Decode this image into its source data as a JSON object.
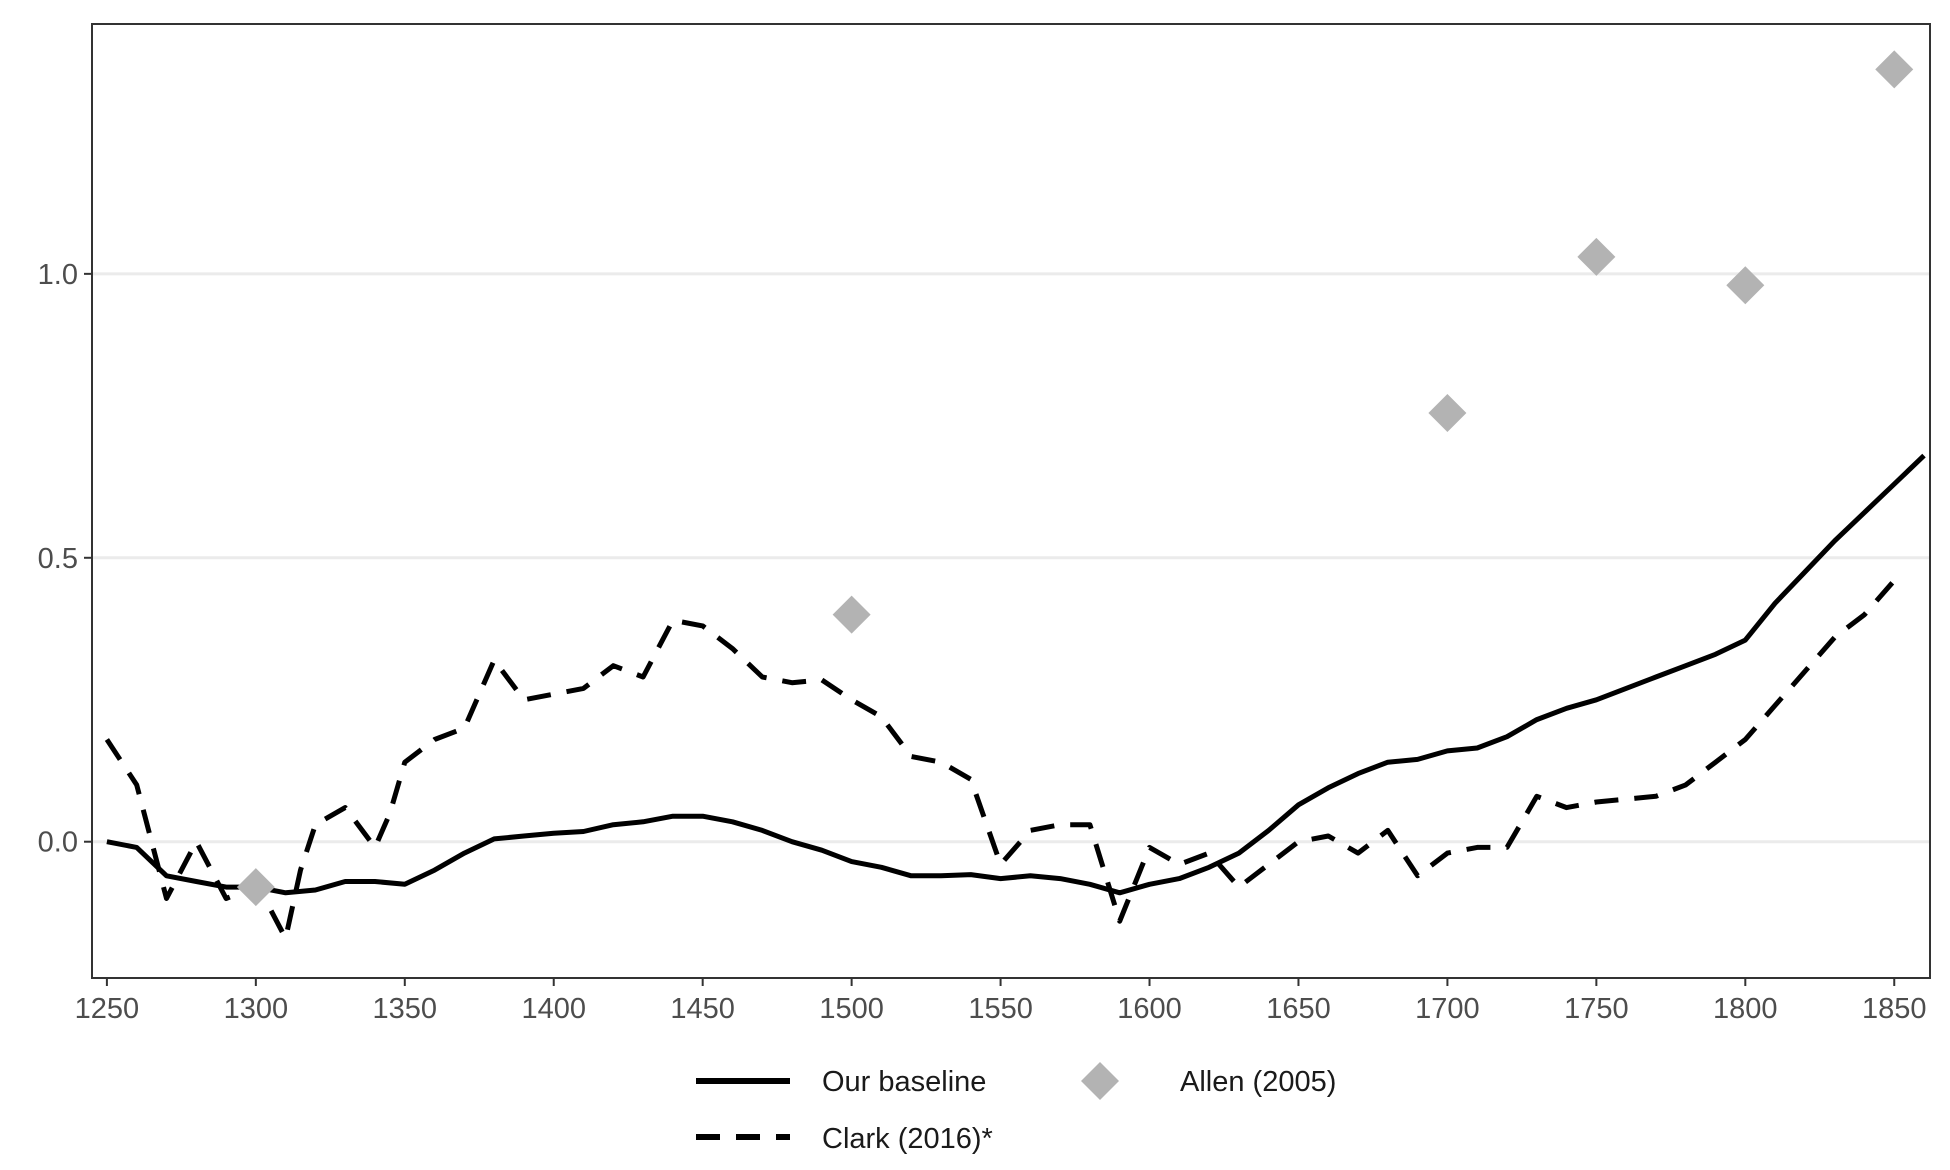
{
  "chart_data": {
    "type": "line",
    "title": "",
    "xlabel": "",
    "ylabel": "",
    "xlim": [
      1245,
      1862
    ],
    "ylim": [
      -0.24,
      1.44
    ],
    "x_ticks": [
      1250,
      1300,
      1350,
      1400,
      1450,
      1500,
      1550,
      1600,
      1650,
      1700,
      1750,
      1800,
      1850
    ],
    "y_ticks": [
      0.0,
      0.5,
      1.0
    ],
    "y_tick_labels": [
      "0.0",
      "0.5",
      "1.0"
    ],
    "grid": "horizontal",
    "legend_position": "bottom",
    "series": [
      {
        "name": "Our baseline",
        "style": "solid",
        "color": "#000000",
        "x": [
          1250,
          1260,
          1270,
          1280,
          1290,
          1300,
          1310,
          1320,
          1330,
          1340,
          1350,
          1360,
          1370,
          1380,
          1390,
          1400,
          1410,
          1420,
          1430,
          1440,
          1450,
          1460,
          1470,
          1480,
          1490,
          1500,
          1510,
          1520,
          1530,
          1540,
          1550,
          1560,
          1570,
          1580,
          1590,
          1600,
          1610,
          1620,
          1630,
          1640,
          1650,
          1660,
          1670,
          1680,
          1690,
          1700,
          1710,
          1720,
          1730,
          1740,
          1750,
          1760,
          1770,
          1780,
          1790,
          1800,
          1810,
          1820,
          1830,
          1840,
          1850,
          1860
        ],
        "y": [
          0.0,
          -0.01,
          -0.06,
          -0.07,
          -0.08,
          -0.08,
          -0.09,
          -0.085,
          -0.07,
          -0.07,
          -0.075,
          -0.05,
          -0.02,
          0.005,
          0.01,
          0.015,
          0.018,
          0.03,
          0.035,
          0.045,
          0.045,
          0.035,
          0.02,
          0.0,
          -0.015,
          -0.035,
          -0.045,
          -0.06,
          -0.06,
          -0.058,
          -0.065,
          -0.06,
          -0.065,
          -0.075,
          -0.09,
          -0.075,
          -0.065,
          -0.045,
          -0.02,
          0.02,
          0.065,
          0.095,
          0.12,
          0.14,
          0.145,
          0.16,
          0.165,
          0.185,
          0.215,
          0.235,
          0.25,
          0.27,
          0.29,
          0.31,
          0.33,
          0.355,
          0.42,
          0.475,
          0.53,
          0.58,
          0.63,
          0.68
        ]
      },
      {
        "name": "Clark (2016)*",
        "style": "dashed",
        "color": "#000000",
        "x": [
          1250,
          1260,
          1265,
          1270,
          1275,
          1280,
          1285,
          1290,
          1300,
          1305,
          1310,
          1315,
          1320,
          1330,
          1340,
          1345,
          1350,
          1360,
          1370,
          1380,
          1390,
          1400,
          1410,
          1420,
          1430,
          1440,
          1450,
          1460,
          1470,
          1480,
          1490,
          1500,
          1510,
          1520,
          1530,
          1540,
          1550,
          1560,
          1570,
          1580,
          1590,
          1600,
          1610,
          1620,
          1630,
          1640,
          1650,
          1660,
          1670,
          1680,
          1690,
          1700,
          1710,
          1720,
          1730,
          1740,
          1750,
          1760,
          1770,
          1780,
          1790,
          1800,
          1810,
          1820,
          1830,
          1840,
          1850
        ],
        "y": [
          0.18,
          0.1,
          0.0,
          -0.1,
          -0.05,
          0.0,
          -0.05,
          -0.1,
          -0.08,
          -0.12,
          -0.17,
          -0.05,
          0.03,
          0.06,
          -0.01,
          0.05,
          0.14,
          0.18,
          0.2,
          0.32,
          0.25,
          0.26,
          0.27,
          0.31,
          0.29,
          0.39,
          0.38,
          0.34,
          0.29,
          0.28,
          0.285,
          0.25,
          0.22,
          0.15,
          0.14,
          0.11,
          -0.04,
          0.02,
          0.03,
          0.03,
          -0.14,
          -0.01,
          -0.04,
          -0.02,
          -0.08,
          -0.04,
          0.0,
          0.01,
          -0.02,
          0.02,
          -0.06,
          -0.02,
          -0.01,
          -0.01,
          0.08,
          0.06,
          0.07,
          0.075,
          0.08,
          0.1,
          0.14,
          0.18,
          0.24,
          0.3,
          0.36,
          0.4,
          0.46
        ]
      },
      {
        "name": "Allen (2005)",
        "style": "diamond",
        "color": "#b3b3b3",
        "x": [
          1300,
          1500,
          1700,
          1750,
          1800,
          1850
        ],
        "y": [
          -0.08,
          0.4,
          0.755,
          1.03,
          0.98,
          1.36
        ]
      }
    ]
  },
  "legend": {
    "items": [
      {
        "label": "Our baseline",
        "style": "solid"
      },
      {
        "label": "Allen (2005)",
        "style": "diamond"
      },
      {
        "label": "Clark (2016)*",
        "style": "dashed"
      }
    ]
  }
}
